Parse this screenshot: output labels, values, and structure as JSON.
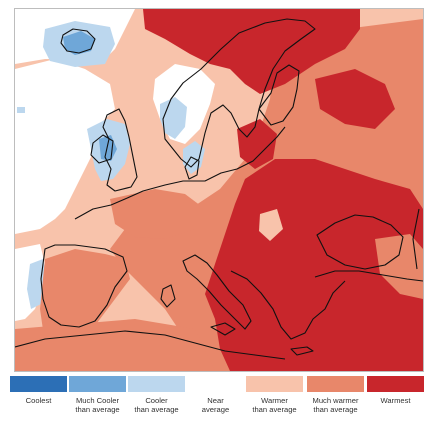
{
  "legend": {
    "items": [
      {
        "id": "coolest",
        "label": "Coolest",
        "color": "#2c6fb6"
      },
      {
        "id": "much-cooler",
        "label": "Much Cooler\nthan average",
        "color": "#6fa7d8"
      },
      {
        "id": "cooler",
        "label": "Cooler\nthan average",
        "color": "#bcd7ee"
      },
      {
        "id": "near",
        "label": "Near\naverage",
        "color": "#ffffff"
      },
      {
        "id": "warmer",
        "label": "Warmer\nthan average",
        "color": "#f8c3ab"
      },
      {
        "id": "much-warmer",
        "label": "Much warmer\nthan average",
        "color": "#e8876a"
      },
      {
        "id": "warmest",
        "label": "Warmest",
        "color": "#c8262c"
      }
    ]
  }
}
